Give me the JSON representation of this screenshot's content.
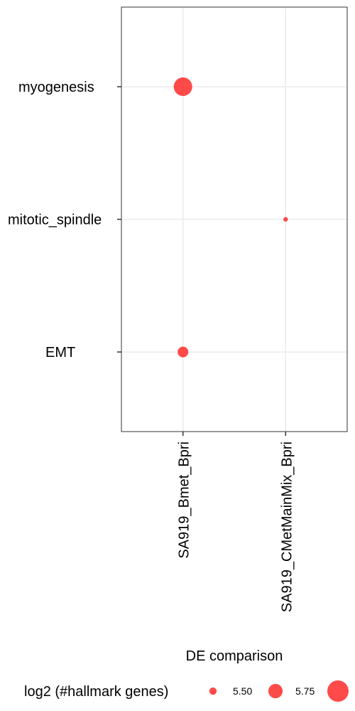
{
  "chart_data": {
    "type": "scatter",
    "title": "",
    "xlabel": "DE comparison",
    "ylabel": "",
    "x_categories": [
      "SA919_Bmet_Bpri",
      "SA919_CMetMainMix_Bpri"
    ],
    "y_categories": [
      "EMT",
      "mitotic_spindle",
      "myogenesis"
    ],
    "points": [
      {
        "x": "SA919_Bmet_Bpri",
        "y": "myogenesis",
        "size": 5.9
      },
      {
        "x": "SA919_CMetMainMix_Bpri",
        "y": "mitotic_spindle",
        "size": 5.4
      },
      {
        "x": "SA919_Bmet_Bpri",
        "y": "EMT",
        "size": 5.62
      }
    ],
    "point_color": "#ff2a2a",
    "grid": true,
    "legend": {
      "title": "log2 (#hallmark genes)",
      "position": "bottom",
      "entries": [
        {
          "label": "5.50",
          "value": 5.5
        },
        {
          "label": "5.75",
          "value": 5.75
        },
        {
          "label": "",
          "value": 6.0
        }
      ]
    }
  }
}
